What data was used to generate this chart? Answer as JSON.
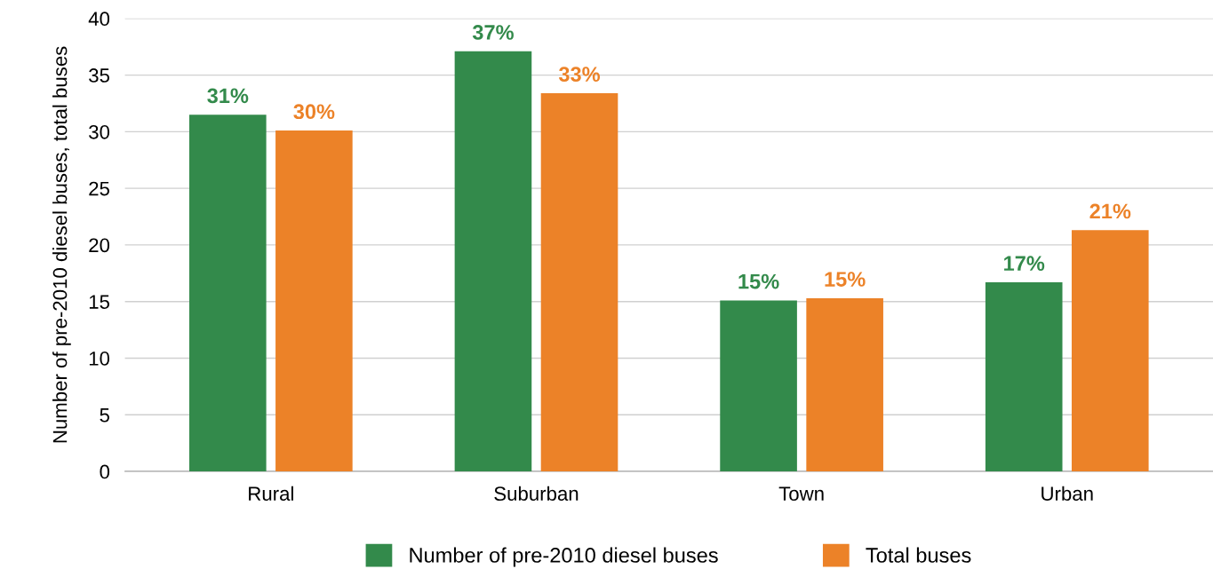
{
  "chart_data": {
    "type": "bar",
    "ylabel": "Number of pre-2010 diesel buses, total buses",
    "categories": [
      "Rural",
      "Suburban",
      "Town",
      "Urban"
    ],
    "series": [
      {
        "name": "Number of pre-2010 diesel buses",
        "color": "#338a4b",
        "values": [
          31.5,
          37.1,
          15.1,
          16.7
        ],
        "value_labels": [
          "31%",
          "37%",
          "15%",
          "17%"
        ]
      },
      {
        "name": "Total buses",
        "color": "#ec8228",
        "values": [
          30.1,
          33.4,
          15.3,
          21.3
        ],
        "value_labels": [
          "30%",
          "33%",
          "15%",
          "21%"
        ]
      }
    ],
    "ylim": [
      0,
      40
    ],
    "yticks": [
      0,
      5,
      10,
      15,
      20,
      25,
      30,
      35,
      40
    ],
    "grid": "y",
    "legend": "bottom"
  }
}
